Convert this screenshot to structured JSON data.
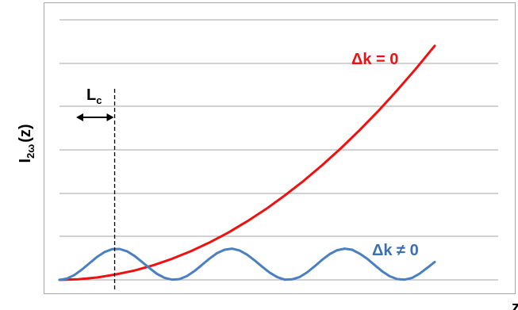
{
  "chart_data": {
    "type": "line",
    "title": "",
    "ylabel": "I",
    "ylabel_sub": "2ω",
    "ylabel_suffix": "(z)",
    "xlabel": "z",
    "xlim": [
      0,
      1
    ],
    "ylim": [
      0,
      1
    ],
    "grid": true,
    "series": [
      {
        "name": "Δk = 0",
        "color": "#ee1111",
        "x": [
          0.0,
          0.05,
          0.1,
          0.15,
          0.2,
          0.25,
          0.3,
          0.35,
          0.4,
          0.45,
          0.5,
          0.55,
          0.6,
          0.65,
          0.7,
          0.75,
          0.8,
          0.85,
          0.9,
          0.95,
          1.0
        ],
        "y": [
          0.0,
          0.002,
          0.009,
          0.021,
          0.036,
          0.056,
          0.081,
          0.11,
          0.144,
          0.182,
          0.225,
          0.272,
          0.324,
          0.38,
          0.441,
          0.506,
          0.576,
          0.65,
          0.729,
          0.812,
          0.9
        ]
      },
      {
        "name": "Δk ≠ 0",
        "color": "#4a7fc0",
        "x": [
          0.0,
          0.02,
          0.04,
          0.06,
          0.08,
          0.1,
          0.12,
          0.14,
          0.16,
          0.18,
          0.2,
          0.22,
          0.24,
          0.26,
          0.28,
          0.3,
          0.32,
          0.34,
          0.36,
          0.38,
          0.4,
          0.42,
          0.44,
          0.46,
          0.48,
          0.5,
          0.52,
          0.54,
          0.56,
          0.58,
          0.6,
          0.62,
          0.64,
          0.66,
          0.68,
          0.7,
          0.72,
          0.74,
          0.76,
          0.78,
          0.8,
          0.82,
          0.84,
          0.86,
          0.88,
          0.9,
          0.92,
          0.94,
          0.96,
          0.98,
          1.0
        ],
        "y": [
          0.0,
          0.005,
          0.019,
          0.04,
          0.064,
          0.088,
          0.107,
          0.118,
          0.119,
          0.11,
          0.092,
          0.069,
          0.045,
          0.023,
          0.008,
          0.001,
          0.003,
          0.015,
          0.034,
          0.058,
          0.082,
          0.103,
          0.116,
          0.12,
          0.113,
          0.097,
          0.075,
          0.051,
          0.028,
          0.011,
          0.001,
          0.002,
          0.011,
          0.029,
          0.052,
          0.077,
          0.099,
          0.114,
          0.12,
          0.116,
          0.101,
          0.081,
          0.057,
          0.033,
          0.014,
          0.003,
          0.001,
          0.008,
          0.024,
          0.046,
          0.069
        ]
      }
    ],
    "annotations": [
      {
        "label": "L",
        "sub": "c",
        "x": 0.147,
        "note": "coherence length marker"
      }
    ]
  }
}
